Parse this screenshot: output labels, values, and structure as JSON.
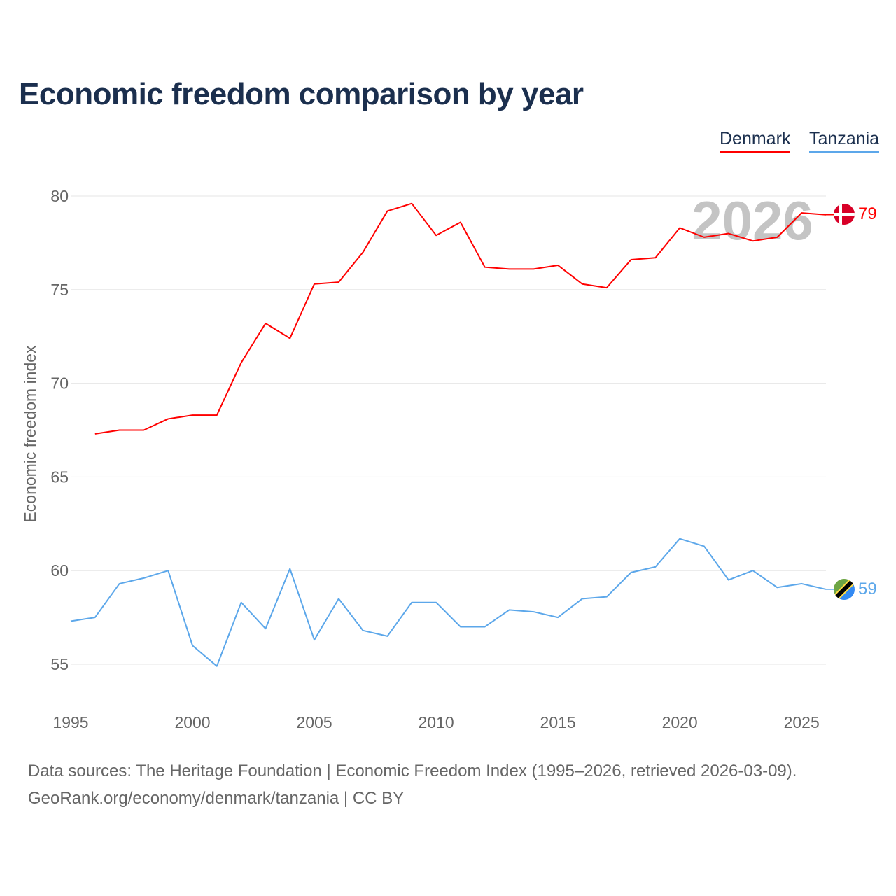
{
  "title": "Economic freedom comparison by year",
  "legend": [
    {
      "label": "Denmark",
      "color": "#ff0000"
    },
    {
      "label": "Tanzania",
      "color": "#5ca7ea"
    }
  ],
  "chart_data": {
    "type": "line",
    "title": "Economic freedom comparison by year",
    "xlabel": "",
    "ylabel": "Economic freedom index",
    "xlim": [
      1995,
      2026
    ],
    "ylim": [
      53,
      81.5
    ],
    "xticks": [
      1995,
      2000,
      2005,
      2010,
      2015,
      2020,
      2025
    ],
    "yticks": [
      55,
      60,
      65,
      70,
      75,
      80
    ],
    "grid": true,
    "legend_position": "top-right",
    "annotation": "2026",
    "series": [
      {
        "name": "Denmark",
        "color": "#ff0000",
        "end_label": "79",
        "x": [
          1996,
          1997,
          1998,
          1999,
          2000,
          2001,
          2002,
          2003,
          2004,
          2005,
          2006,
          2007,
          2008,
          2009,
          2010,
          2011,
          2012,
          2013,
          2014,
          2015,
          2016,
          2017,
          2018,
          2019,
          2020,
          2021,
          2022,
          2023,
          2024,
          2025,
          2026
        ],
        "values": [
          67.3,
          67.5,
          67.5,
          68.1,
          68.3,
          68.3,
          71.1,
          73.2,
          72.4,
          75.3,
          75.4,
          77.0,
          79.2,
          79.6,
          77.9,
          78.6,
          76.2,
          76.1,
          76.1,
          76.3,
          75.3,
          75.1,
          76.6,
          76.7,
          78.3,
          77.8,
          78.0,
          77.6,
          77.8,
          79.1,
          79.0
        ]
      },
      {
        "name": "Tanzania",
        "color": "#5ca7ea",
        "end_label": "59",
        "x": [
          1995,
          1996,
          1997,
          1998,
          1999,
          2000,
          2001,
          2002,
          2003,
          2004,
          2005,
          2006,
          2007,
          2008,
          2009,
          2010,
          2011,
          2012,
          2013,
          2014,
          2015,
          2016,
          2017,
          2018,
          2019,
          2020,
          2021,
          2022,
          2023,
          2024,
          2025,
          2026
        ],
        "values": [
          57.3,
          57.5,
          59.3,
          59.6,
          60.0,
          56.0,
          54.9,
          58.3,
          56.9,
          60.1,
          56.3,
          58.5,
          56.8,
          56.5,
          58.3,
          58.3,
          57.0,
          57.0,
          57.9,
          57.8,
          57.5,
          58.5,
          58.6,
          59.9,
          60.2,
          61.7,
          61.3,
          59.5,
          60.0,
          59.1,
          59.3,
          59.0
        ]
      }
    ]
  },
  "footer": {
    "line1": "Data sources: The Heritage Foundation | Economic Freedom Index (1995–2026, retrieved 2026-03-09).",
    "line2": "GeoRank.org/economy/denmark/tanzania | CC BY"
  }
}
